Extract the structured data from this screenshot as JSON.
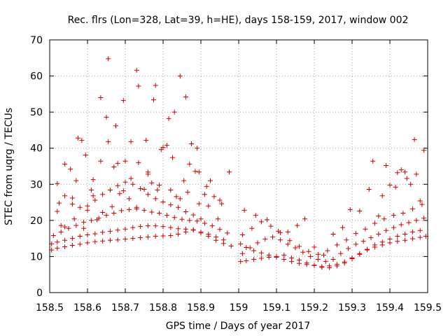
{
  "chart_data": {
    "type": "scatter",
    "title": "Rec. flrs (Lon=328, Lat=39, h=HE), days 158-159, 2017, window 002",
    "xlabel": "GPS time / Days of year 2017",
    "ylabel": "STEC from uqrg / TECUs",
    "xlim": [
      158.5,
      159.5
    ],
    "ylim": [
      0,
      70
    ],
    "grid": true,
    "marker": "+",
    "series_color": "#cc0000",
    "x_ticks": [
      158.5,
      158.6,
      158.7,
      158.8,
      158.9,
      159.0,
      159.1,
      159.2,
      159.3,
      159.4,
      159.5
    ],
    "x_tick_labels": [
      "158.5",
      "158.6",
      "158.7",
      "158.8",
      "158.9",
      "159",
      "159.1",
      "159.2",
      "159.3",
      "159.4",
      "159.5"
    ],
    "y_ticks": [
      0,
      10,
      20,
      30,
      40,
      50,
      60,
      70
    ],
    "y_tick_labels": [
      "0",
      "10",
      "20",
      "30",
      "40",
      "50",
      "60",
      "70"
    ],
    "series": [
      {
        "name": "STEC",
        "tracks": [
          {
            "x": [
              158.505,
              158.52,
              158.54,
              158.56,
              158.58,
              158.6,
              158.62,
              158.64,
              158.66,
              158.68,
              158.7,
              158.72,
              158.74,
              158.76,
              158.78,
              158.8,
              158.82,
              158.84,
              158.86,
              158.88,
              158.9,
              158.92,
              158.94,
              158.96,
              158.98
            ],
            "y": [
              11.8,
              12.3,
              12.7,
              13.1,
              13.4,
              13.8,
              14.1,
              14.3,
              14.5,
              14.6,
              14.8,
              15.0,
              15.2,
              15.4,
              15.6,
              15.7,
              15.8,
              16.2,
              16.8,
              17.3,
              16.5,
              15.6,
              14.5,
              13.6,
              12.9
            ]
          },
          {
            "x": [
              158.505,
              158.52,
              158.54,
              158.56,
              158.58,
              158.6,
              158.62,
              158.64,
              158.66,
              158.68,
              158.7,
              158.72,
              158.74,
              158.76,
              158.78,
              158.8,
              158.82,
              158.84,
              158.86,
              158.88,
              158.9,
              158.92,
              158.94,
              158.96
            ],
            "y": [
              13.5,
              14.0,
              14.5,
              15.0,
              15.6,
              16.0,
              16.3,
              16.7,
              17.0,
              17.3,
              17.6,
              18.0,
              18.3,
              18.5,
              18.5,
              18.3,
              18.0,
              17.7,
              17.6,
              17.4,
              16.8,
              16.2,
              15.4,
              14.6
            ]
          },
          {
            "x": [
              158.51,
              158.53,
              158.55,
              158.57,
              158.59,
              158.61,
              158.63,
              158.65,
              158.67,
              158.69,
              158.71,
              158.73,
              158.75,
              158.77,
              158.79,
              158.81,
              158.83,
              158.85,
              158.87,
              158.89,
              158.91,
              158.93,
              158.95,
              158.97
            ],
            "y": [
              15.8,
              16.8,
              17.8,
              18.6,
              19.5,
              20.0,
              20.6,
              21.4,
              22.0,
              22.7,
              23.0,
              23.2,
              22.8,
              22.3,
              22.0,
              21.4,
              20.8,
              20.3,
              20.0,
              19.8,
              19.2,
              18.5,
              17.5,
              16.5
            ]
          },
          {
            "x": [
              158.52,
              158.54,
              158.56,
              158.58,
              158.6,
              158.62,
              158.64,
              158.66,
              158.68,
              158.7,
              158.72,
              158.74,
              158.76,
              158.78,
              158.8,
              158.82,
              158.84,
              158.86,
              158.88,
              158.9
            ],
            "y": [
              22.5,
              26.8,
              24.5,
              23.6,
              24.0,
              25.6,
              27.2,
              28.4,
              29.6,
              30.6,
              30.0,
              28.8,
              27.2,
              26.0,
              25.1,
              24.3,
              23.6,
              22.4,
              21.5,
              20.4
            ]
          },
          {
            "x": [
              158.52,
              158.54,
              158.555,
              158.575,
              158.595,
              158.615,
              158.635,
              158.655,
              158.675,
              158.695,
              158.715,
              158.735,
              158.755,
              158.775,
              158.795,
              158.815,
              158.835,
              158.855,
              158.875,
              158.895,
              158.915,
              158.935,
              158.955,
              158.975
            ],
            "y": [
              30.2,
              35.6,
              34.2,
              42.8,
              38.1,
              31.3,
              36.4,
              41.8,
              46.2,
              53.2,
              41.8,
              36.0,
              42.2,
              53.4,
              39.6,
              48.2,
              26.6,
              31.0,
              41.2,
              33.4,
              29.4,
              26.6,
              24.6,
              33.4
            ]
          },
          {
            "x": [
              158.525,
              158.56,
              158.585,
              158.61,
              158.635,
              158.655,
              158.68,
              158.7,
              158.73,
              158.76,
              158.78,
              158.81,
              158.83,
              158.86,
              158.885,
              158.91
            ],
            "y": [
              24.8,
              26.2,
              42.2,
              28.4,
              54.0,
              64.8,
              35.8,
              36.4,
              61.6,
              32.8,
              57.4,
              40.8,
              50.0,
              54.2,
              33.6,
              27.2
            ]
          },
          {
            "x": [
              158.53,
              158.57,
              158.6,
              158.625,
              158.65,
              158.67,
              158.695,
              158.715,
              158.735,
              158.76,
              158.785,
              158.8,
              158.825,
              158.845,
              158.87,
              158.89,
              158.925,
              158.95
            ],
            "y": [
              18.6,
              31.0,
              22.8,
              20.2,
              48.6,
              34.8,
              28.2,
              31.6,
              57.2,
              33.4,
              28.4,
              40.2,
              37.4,
              60.0,
              35.6,
              40.0,
              31.0,
              25.6
            ]
          },
          {
            "x": [
              158.54,
              158.565,
              158.59,
              158.615,
              158.64,
              158.665,
              158.685,
              158.71,
              158.73,
              158.75,
              158.77,
              158.79,
              158.82,
              158.845,
              158.865,
              158.895,
              158.92,
              158.945
            ],
            "y": [
              18.2,
              20.4,
              17.8,
              26.8,
              22.2,
              23.8,
              27.4,
              26.0,
              23.6,
              28.6,
              30.4,
              29.8,
              28.4,
              26.0,
              27.8,
              24.6,
              24.0,
              20.4
            ]
          },
          {
            "x": [
              159.005,
              159.02,
              159.04,
              159.06,
              159.08,
              159.1,
              159.12,
              159.14,
              159.16,
              159.18,
              159.2,
              159.22,
              159.24,
              159.26,
              159.28,
              159.3,
              159.32,
              159.34,
              159.36,
              159.38,
              159.4,
              159.42,
              159.44,
              159.46,
              159.48,
              159.495
            ],
            "y": [
              13.5,
              12.5,
              11.6,
              11.0,
              10.4,
              9.8,
              9.2,
              8.6,
              8.1,
              7.8,
              7.5,
              7.2,
              7.4,
              7.8,
              8.5,
              9.6,
              10.8,
              11.8,
              12.6,
              13.2,
              13.8,
              14.2,
              14.5,
              14.9,
              15.3,
              15.6
            ]
          },
          {
            "x": [
              159.005,
              159.02,
              159.04,
              159.06,
              159.08,
              159.1,
              159.12,
              159.14,
              159.16,
              159.18,
              159.2,
              159.22,
              159.24,
              159.26,
              159.28,
              159.3,
              159.32,
              159.34,
              159.36,
              159.38,
              159.4,
              159.42,
              159.44,
              159.46,
              159.48
            ],
            "y": [
              8.6,
              8.8,
              9.2,
              9.5,
              9.8,
              10.0,
              10.4,
              9.6,
              9.0,
              8.2,
              7.6,
              7.0,
              6.9,
              7.4,
              8.2,
              9.4,
              10.6,
              12.0,
              13.2,
              14.0,
              14.8,
              15.6,
              16.2,
              16.8,
              17.2
            ]
          },
          {
            "x": [
              159.01,
              159.03,
              159.05,
              159.07,
              159.09,
              159.11,
              159.13,
              159.15,
              159.17,
              159.19,
              159.21,
              159.23,
              159.25,
              159.27,
              159.29,
              159.31,
              159.33,
              159.35,
              159.37,
              159.39,
              159.41,
              159.43,
              159.45,
              159.47,
              159.49
            ],
            "y": [
              10.8,
              12.4,
              13.8,
              14.8,
              15.4,
              14.6,
              13.4,
              12.4,
              11.2,
              10.0,
              9.2,
              8.6,
              9.2,
              10.8,
              12.2,
              13.4,
              14.2,
              15.2,
              16.2,
              17.2,
              18.0,
              18.8,
              19.4,
              20.0,
              20.6
            ]
          },
          {
            "x": [
              159.01,
              159.035,
              159.06,
              159.085,
              159.11,
              159.135,
              159.16,
              159.185,
              159.21,
              159.235,
              159.26,
              159.285,
              159.31,
              159.335,
              159.36,
              159.385,
              159.41,
              159.435,
              159.46,
              159.485
            ],
            "y": [
              16.0,
              17.8,
              19.6,
              18.4,
              16.6,
              14.4,
              12.8,
              11.4,
              10.6,
              11.6,
              13.2,
              14.6,
              16.4,
              17.6,
              19.2,
              20.4,
              21.4,
              22.0,
              23.2,
              24.4
            ]
          },
          {
            "x": [
              159.015,
              159.045,
              159.075,
              159.105,
              159.13,
              159.155,
              159.175,
              159.2,
              159.225,
              159.25,
              159.275,
              159.295,
              159.32,
              159.345,
              159.37,
              159.39,
              159.415,
              159.44,
              159.465,
              159.49
            ],
            "y": [
              22.8,
              21.4,
              20.2,
              17.0,
              16.8,
              18.6,
              20.4,
              12.6,
              10.4,
              16.2,
              18.0,
              23.0,
              22.6,
              28.6,
              21.2,
              35.2,
              29.2,
              33.4,
              42.4,
              39.4
            ]
          },
          {
            "x": [
              159.355,
              159.38,
              159.4,
              159.42,
              159.43,
              159.445,
              159.455,
              159.47,
              159.48
            ],
            "y": [
              36.4,
              26.8,
              29.8,
              33.2,
              34.0,
              31.6,
              30.0,
              32.8,
              25.4
            ]
          }
        ]
      }
    ]
  }
}
